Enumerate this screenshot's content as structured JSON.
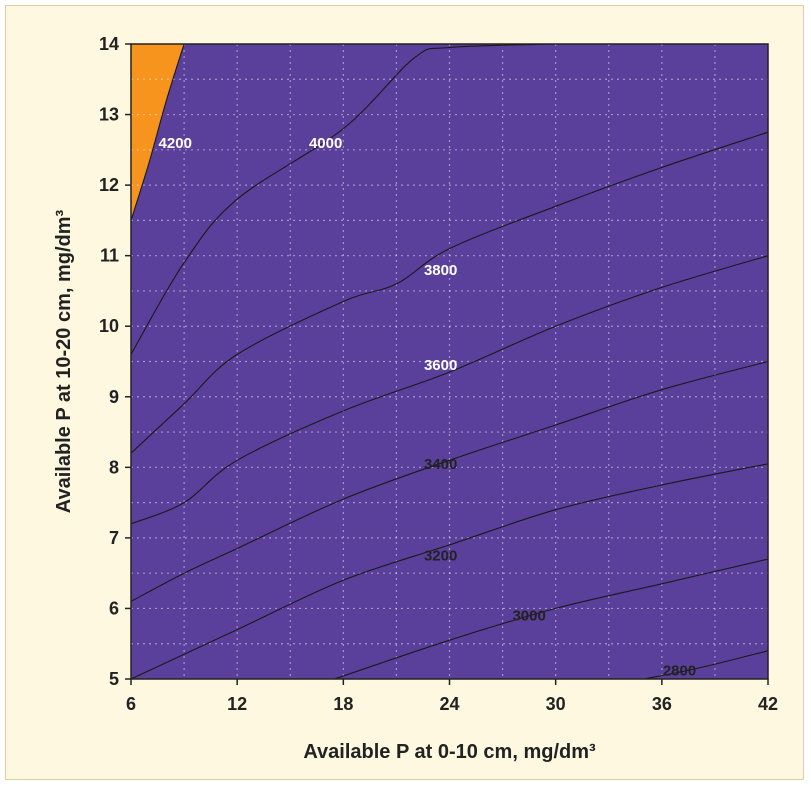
{
  "chart_data": {
    "type": "contour",
    "xlabel": "Available P at 0-10 cm, mg/dm³",
    "ylabel": "Available P at 10-20 cm, mg/dm³",
    "xlim": [
      6,
      42
    ],
    "ylim": [
      5,
      14
    ],
    "x_ticks": [
      "6",
      "12",
      "18",
      "24",
      "30",
      "36",
      "42"
    ],
    "y_ticks": [
      "5",
      "6",
      "7",
      "8",
      "9",
      "10",
      "11",
      "12",
      "13",
      "14"
    ],
    "grid": true,
    "levels": [
      2800,
      3000,
      3200,
      3400,
      3600,
      3800,
      4000,
      4200
    ],
    "contour_lines": [
      {
        "level": 2800,
        "label": "2800",
        "points": [
          [
            35,
            5.0
          ],
          [
            38,
            5.15
          ],
          [
            42,
            5.4
          ]
        ]
      },
      {
        "level": 3000,
        "label": "3000",
        "points": [
          [
            17.5,
            5.0
          ],
          [
            24,
            5.55
          ],
          [
            30,
            6.0
          ],
          [
            36,
            6.35
          ],
          [
            42,
            6.7
          ]
        ]
      },
      {
        "level": 3200,
        "label": "3200",
        "points": [
          [
            6,
            5.0
          ],
          [
            12,
            5.7
          ],
          [
            18,
            6.4
          ],
          [
            24,
            6.9
          ],
          [
            30,
            7.4
          ],
          [
            36,
            7.75
          ],
          [
            42,
            8.05
          ]
        ]
      },
      {
        "level": 3400,
        "label": "3400",
        "points": [
          [
            6,
            6.1
          ],
          [
            9,
            6.5
          ],
          [
            12,
            6.85
          ],
          [
            18,
            7.55
          ],
          [
            24,
            8.1
          ],
          [
            30,
            8.6
          ],
          [
            36,
            9.1
          ],
          [
            42,
            9.5
          ]
        ]
      },
      {
        "level": 3600,
        "label": "3600",
        "points": [
          [
            6,
            7.2
          ],
          [
            9,
            7.5
          ],
          [
            12,
            8.1
          ],
          [
            18,
            8.8
          ],
          [
            24,
            9.35
          ],
          [
            30,
            10.0
          ],
          [
            36,
            10.55
          ],
          [
            42,
            11.0
          ]
        ]
      },
      {
        "level": 3800,
        "label": "3800",
        "points": [
          [
            6,
            8.2
          ],
          [
            9,
            8.9
          ],
          [
            12,
            9.6
          ],
          [
            18,
            10.35
          ],
          [
            21,
            10.6
          ],
          [
            24,
            11.1
          ],
          [
            30,
            11.7
          ],
          [
            36,
            12.25
          ],
          [
            42,
            12.75
          ]
        ]
      },
      {
        "level": 4000,
        "label": "4000",
        "points": [
          [
            6,
            9.6
          ],
          [
            9,
            10.9
          ],
          [
            12,
            11.8
          ],
          [
            18,
            12.8
          ],
          [
            22,
            13.8
          ],
          [
            24,
            13.95
          ],
          [
            30,
            14.0
          ]
        ]
      },
      {
        "level": 4200,
        "label": "4200",
        "points": [
          [
            6,
            11.5
          ],
          [
            7,
            12.3
          ],
          [
            8,
            13.2
          ],
          [
            9,
            14.0
          ]
        ]
      }
    ],
    "label_positions": [
      {
        "label": "2800",
        "x": 37,
        "y": 5.12
      },
      {
        "label": "3000",
        "x": 28.5,
        "y": 5.9
      },
      {
        "label": "3200",
        "x": 23.5,
        "y": 6.75
      },
      {
        "label": "3400",
        "x": 23.5,
        "y": 8.05
      },
      {
        "label": "3600",
        "x": 23.5,
        "y": 9.45
      },
      {
        "label": "3800",
        "x": 23.5,
        "y": 10.8
      },
      {
        "label": "4000",
        "x": 17,
        "y": 12.6
      },
      {
        "label": "4200",
        "x": 8.5,
        "y": 12.6
      }
    ],
    "colors": {
      "below_2800": "#f7941d",
      "2800_3000": "#e8b42a",
      "3000_3200": "#b5c43a",
      "3200_3400": "#55a944",
      "3400_3600": "#1b9148",
      "3600_3800": "#0f8b72",
      "3800_4000": "#1a7a8c",
      "4000_4200": "#1a5496",
      "above_4200": "#5a3f9b",
      "label_dark": "#222222",
      "label_light": "#ffffff"
    }
  }
}
